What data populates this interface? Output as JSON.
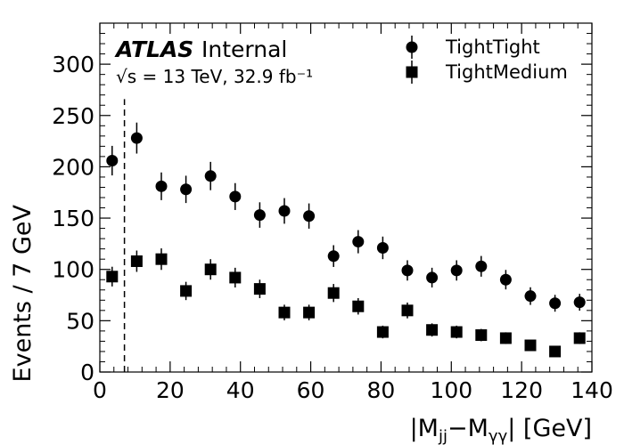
{
  "chart_data": {
    "type": "scatter",
    "xlabel": "|M_jj−M_γγ| [GeV]",
    "ylabel": "Events / 7 GeV",
    "xlim": [
      0,
      140
    ],
    "ylim": [
      0,
      340
    ],
    "xticks": [
      0,
      20,
      40,
      60,
      80,
      100,
      120,
      140
    ],
    "yticks": [
      0,
      50,
      100,
      150,
      200,
      250,
      300
    ],
    "xtick_labels": [
      "0",
      "20",
      "40",
      "60",
      "80",
      "100",
      "120",
      "140"
    ],
    "ytick_labels": [
      "0",
      "50",
      "100",
      "150",
      "200",
      "250",
      "300"
    ],
    "cut_line_x": 7,
    "labels": {
      "experiment": "ATLAS",
      "status": "Internal",
      "energy_lumi": "√s = 13 TeV, 32.9 fb⁻¹"
    },
    "legend_position": "top-right",
    "series": [
      {
        "name": "TightTight",
        "marker": "circle",
        "color": "#000000",
        "x": [
          3.5,
          10.5,
          17.5,
          24.5,
          31.5,
          38.5,
          45.5,
          52.5,
          59.5,
          66.5,
          73.5,
          80.5,
          87.5,
          94.5,
          101.5,
          108.5,
          115.5,
          122.5,
          129.5,
          136.5
        ],
        "y": [
          206,
          228,
          181,
          178,
          191,
          171,
          153,
          157,
          152,
          113,
          127,
          121,
          99,
          92,
          99,
          103,
          90,
          74,
          67,
          68
        ],
        "err": [
          14.4,
          15.1,
          13.5,
          13.3,
          13.8,
          13.1,
          12.4,
          12.5,
          12.3,
          10.6,
          11.3,
          11.0,
          9.9,
          9.6,
          9.9,
          10.1,
          9.5,
          8.6,
          8.2,
          8.2
        ]
      },
      {
        "name": "TightMedium",
        "marker": "square",
        "color": "#000000",
        "x": [
          3.5,
          10.5,
          17.5,
          24.5,
          31.5,
          38.5,
          45.5,
          52.5,
          59.5,
          66.5,
          73.5,
          80.5,
          87.5,
          94.5,
          101.5,
          108.5,
          115.5,
          122.5,
          129.5,
          136.5
        ],
        "y": [
          93,
          108,
          110,
          79,
          100,
          92,
          81,
          58,
          58,
          77,
          64,
          39,
          60,
          41,
          39,
          36,
          33,
          26,
          20,
          33
        ],
        "err": [
          9.6,
          10.4,
          10.5,
          8.9,
          10.0,
          9.6,
          9.0,
          7.6,
          7.6,
          8.8,
          8.0,
          6.2,
          7.7,
          6.4,
          6.2,
          6.0,
          5.7,
          5.1,
          4.5,
          5.7
        ]
      }
    ]
  }
}
